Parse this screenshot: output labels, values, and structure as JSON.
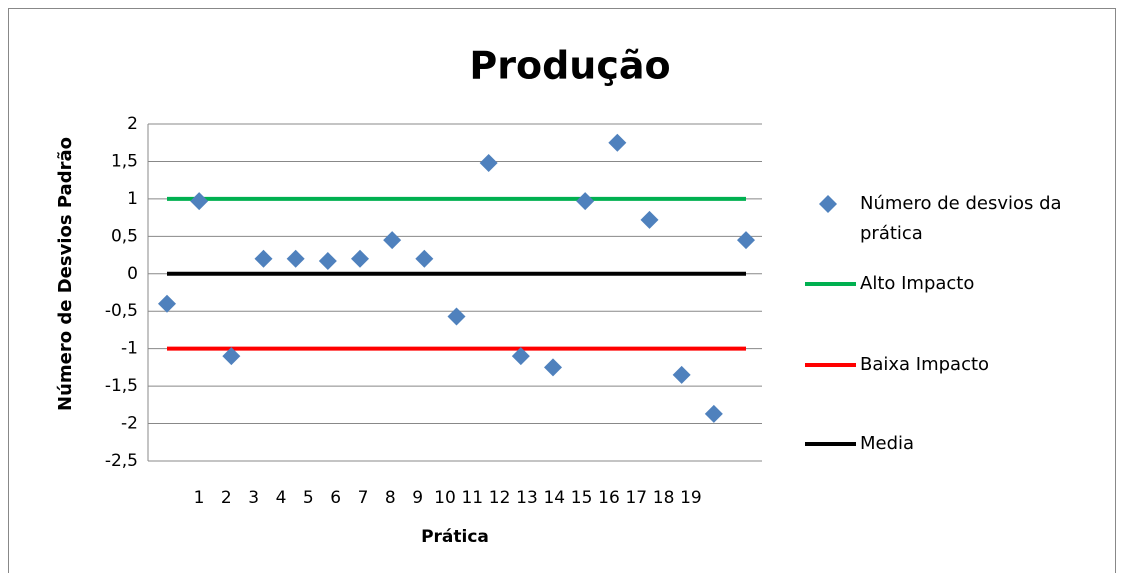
{
  "chart_data": {
    "type": "scatter",
    "title": "Produção",
    "x_label": "Prática",
    "y_label": "Número de Desvios Padrão",
    "categories": [
      "1",
      "2",
      "3",
      "4",
      "5",
      "6",
      "7",
      "8",
      "9",
      "10",
      "11",
      "12",
      "13",
      "14",
      "15",
      "16",
      "17",
      "18",
      "19"
    ],
    "series": [
      {
        "name": "Número de desvios da prática",
        "type": "scatter",
        "color": "#4f81bd",
        "values": [
          -0.4,
          0.97,
          -1.1,
          0.2,
          0.2,
          0.17,
          0.2,
          0.45,
          0.2,
          -0.57,
          1.48,
          -1.1,
          -1.25,
          0.97,
          1.75,
          0.72,
          -1.35,
          -1.87,
          0.45
        ]
      },
      {
        "name": "Alto Impacto",
        "type": "line",
        "color": "#00b050",
        "values": [
          1,
          1,
          1,
          1,
          1,
          1,
          1,
          1,
          1,
          1,
          1,
          1,
          1,
          1,
          1,
          1,
          1,
          1,
          1
        ]
      },
      {
        "name": "Baixa Impacto",
        "type": "line",
        "color": "#ff0000",
        "values": [
          -1,
          -1,
          -1,
          -1,
          -1,
          -1,
          -1,
          -1,
          -1,
          -1,
          -1,
          -1,
          -1,
          -1,
          -1,
          -1,
          -1,
          -1,
          -1
        ]
      },
      {
        "name": "Media",
        "type": "line",
        "color": "#000000",
        "values": [
          0,
          0,
          0,
          0,
          0,
          0,
          0,
          0,
          0,
          0,
          0,
          0,
          0,
          0,
          0,
          0,
          0,
          0,
          0
        ]
      }
    ],
    "ylim": [
      -2.5,
      2
    ],
    "yticks": [
      2,
      {
        "value": 1.5,
        "label": "1,5"
      },
      1,
      {
        "value": 0.5,
        "label": "0,5"
      },
      0,
      {
        "value": -0.5,
        "label": "-0,5"
      },
      -1,
      {
        "value": -1.5,
        "label": "-1,5"
      },
      -2,
      {
        "value": -2.5,
        "label": "-2,5"
      }
    ],
    "grid": true,
    "legend": "right"
  }
}
